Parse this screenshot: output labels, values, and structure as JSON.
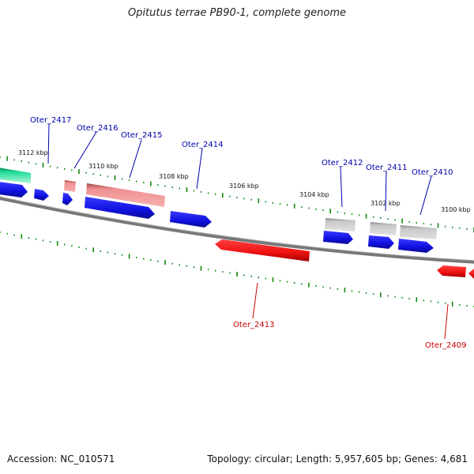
{
  "title": "Opitutus terrae PB90-1, complete genome",
  "accession": "Accession: NC_010571",
  "topology": "Topology: circular; Length: 5,957,605 bp; Genes: 4,681",
  "scale_labels": [
    "3112 kbp",
    "3110 kbp",
    "3108 kbp",
    "3106 kbp",
    "3104 kbp",
    "3102 kbp",
    "3100 kbp"
  ],
  "gene_labels": {
    "oter_2417": "Oter_2417",
    "oter_2416": "Oter_2416",
    "oter_2415": "Oter_2415",
    "oter_2414": "Oter_2414",
    "oter_2412": "Oter_2412",
    "oter_2411": "Oter_2411",
    "oter_2410": "Oter_2410",
    "oter_2413": "Oter_2413",
    "oter_2409": "Oter_2409"
  },
  "colors": {
    "label_forward": "#0000aa",
    "label_reverse": "#cc0000",
    "blue_feature": "#1010e0",
    "red_feature": "#ee1111",
    "pink_feature": "#ee8080",
    "gray_feature": "#b8b8b8",
    "green_feature": "#22dd99",
    "backbone": "#777777",
    "ticks": "#118811"
  }
}
